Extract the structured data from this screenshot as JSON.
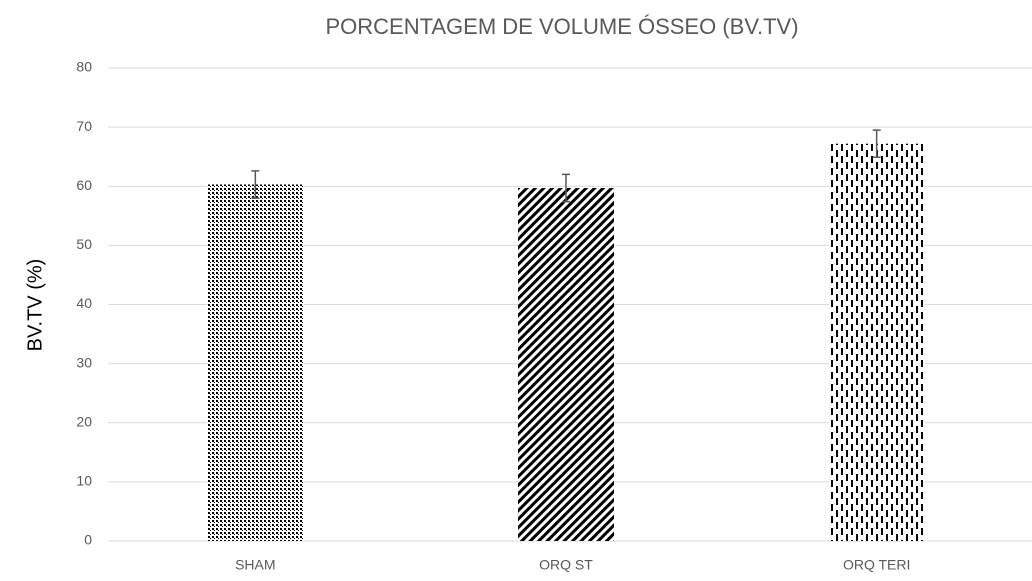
{
  "chart_data": {
    "type": "bar",
    "title": "PORCENTAGEM DE VOLUME ÓSSEO (BV.TV)",
    "y_label": "BV.TV (%)",
    "categories": [
      "SHAM",
      "ORQ ST",
      "ORQ TERI"
    ],
    "values": [
      60.3,
      59.7,
      67.2
    ],
    "errors": [
      2.3,
      2.3,
      2.3
    ],
    "patterns": [
      "dots",
      "diagonal",
      "dashed-vertical"
    ],
    "color": "#000000",
    "ylim": [
      0,
      80
    ],
    "yticks": [
      0,
      10,
      20,
      30,
      40,
      50,
      60,
      70,
      80
    ],
    "grid": true
  }
}
